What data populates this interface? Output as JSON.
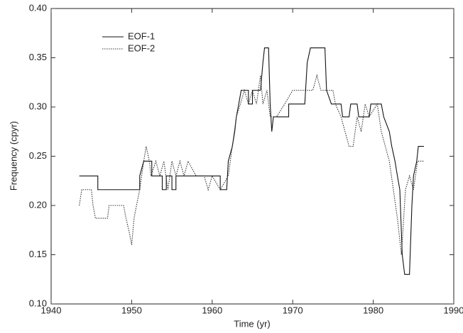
{
  "chart_data": {
    "type": "line",
    "x_label": "Time (yr)",
    "y_label": "Frequency (cpyr)",
    "xlim": [
      1940,
      1990
    ],
    "xticks": [
      1940,
      1950,
      1960,
      1970,
      1980,
      1990
    ],
    "ylim": [
      0.1,
      0.4
    ],
    "yticks": [
      {
        "value": 0.1,
        "label": "0.10"
      },
      {
        "value": 0.15,
        "label": "0.15"
      },
      {
        "value": 0.2,
        "label": "0.20"
      },
      {
        "value": 0.25,
        "label": "0.25"
      },
      {
        "value": 0.3,
        "label": "0.30"
      },
      {
        "value": 0.35,
        "label": "0.35"
      },
      {
        "value": 0.4,
        "label": "0.40"
      }
    ],
    "legend": "upper left",
    "series": [
      {
        "name": "EOF-1",
        "color": "#111111",
        "dash": "solid",
        "x": [
          1943.5,
          1945.8,
          1945.8,
          1951.0,
          1951.0,
          1951.5,
          1952.5,
          1952.5,
          1953.8,
          1953.8,
          1954.3,
          1954.3,
          1955.0,
          1955.0,
          1955.5,
          1955.5,
          1961.0,
          1961.0,
          1961.8,
          1962.0,
          1962.5,
          1962.8,
          1963.0,
          1963.3,
          1963.6,
          1964.5,
          1964.5,
          1965.0,
          1965.0,
          1966.0,
          1966.3,
          1966.5,
          1967.0,
          1967.2,
          1967.4,
          1967.6,
          1969.5,
          1969.5,
          1971.5,
          1971.8,
          1972.2,
          1974.0,
          1974.2,
          1974.8,
          1976.0,
          1976.2,
          1977.0,
          1977.2,
          1978.0,
          1978.2,
          1979.5,
          1979.7,
          1981.0,
          1981.3,
          1982.0,
          1982.3,
          1982.7,
          1983.0,
          1983.3,
          1983.6,
          1983.9,
          1984.5,
          1984.8,
          1985.0,
          1985.4,
          1985.6,
          1986.3
        ],
        "values": [
          0.23,
          0.23,
          0.216,
          0.216,
          0.23,
          0.245,
          0.245,
          0.23,
          0.23,
          0.216,
          0.216,
          0.23,
          0.23,
          0.216,
          0.216,
          0.23,
          0.23,
          0.216,
          0.216,
          0.245,
          0.26,
          0.275,
          0.29,
          0.303,
          0.317,
          0.317,
          0.303,
          0.303,
          0.317,
          0.317,
          0.345,
          0.36,
          0.36,
          0.303,
          0.275,
          0.29,
          0.29,
          0.303,
          0.303,
          0.345,
          0.36,
          0.36,
          0.317,
          0.303,
          0.303,
          0.29,
          0.29,
          0.303,
          0.303,
          0.29,
          0.29,
          0.303,
          0.303,
          0.29,
          0.275,
          0.26,
          0.245,
          0.23,
          0.216,
          0.15,
          0.13,
          0.13,
          0.2,
          0.23,
          0.245,
          0.26,
          0.26
        ]
      },
      {
        "name": "EOF-2",
        "color": "#333333",
        "dash": "dotted",
        "x": [
          1943.5,
          1943.8,
          1945.0,
          1945.2,
          1945.5,
          1947.0,
          1947.2,
          1949.0,
          1949.3,
          1949.7,
          1950.0,
          1950.3,
          1950.6,
          1951.0,
          1951.5,
          1951.8,
          1952.2,
          1952.4,
          1953.0,
          1953.5,
          1954.0,
          1954.5,
          1955.0,
          1955.5,
          1956.0,
          1956.5,
          1957.0,
          1958.0,
          1959.0,
          1959.5,
          1960.0,
          1961.0,
          1962.0,
          1962.5,
          1963.0,
          1963.5,
          1964.0,
          1964.5,
          1965.0,
          1965.5,
          1966.0,
          1966.3,
          1966.8,
          1967.2,
          1968.0,
          1969.0,
          1970.0,
          1972.5,
          1973.0,
          1973.5,
          1975.0,
          1975.3,
          1976.0,
          1977.0,
          1977.5,
          1978.0,
          1978.5,
          1979.0,
          1979.5,
          1980.5,
          1981.0,
          1981.5,
          1982.0,
          1982.5,
          1983.0,
          1983.5,
          1984.0,
          1984.5,
          1985.0,
          1985.5,
          1986.3
        ],
        "values": [
          0.2,
          0.216,
          0.216,
          0.2,
          0.187,
          0.187,
          0.2,
          0.2,
          0.187,
          0.173,
          0.16,
          0.187,
          0.2,
          0.216,
          0.245,
          0.26,
          0.245,
          0.23,
          0.245,
          0.23,
          0.245,
          0.216,
          0.245,
          0.23,
          0.245,
          0.23,
          0.245,
          0.23,
          0.23,
          0.216,
          0.23,
          0.216,
          0.23,
          0.26,
          0.29,
          0.303,
          0.317,
          0.303,
          0.317,
          0.303,
          0.332,
          0.303,
          0.317,
          0.29,
          0.29,
          0.303,
          0.317,
          0.317,
          0.332,
          0.317,
          0.317,
          0.303,
          0.29,
          0.26,
          0.26,
          0.29,
          0.275,
          0.303,
          0.29,
          0.303,
          0.275,
          0.26,
          0.245,
          0.216,
          0.187,
          0.15,
          0.216,
          0.23,
          0.216,
          0.245,
          0.245
        ]
      }
    ]
  }
}
